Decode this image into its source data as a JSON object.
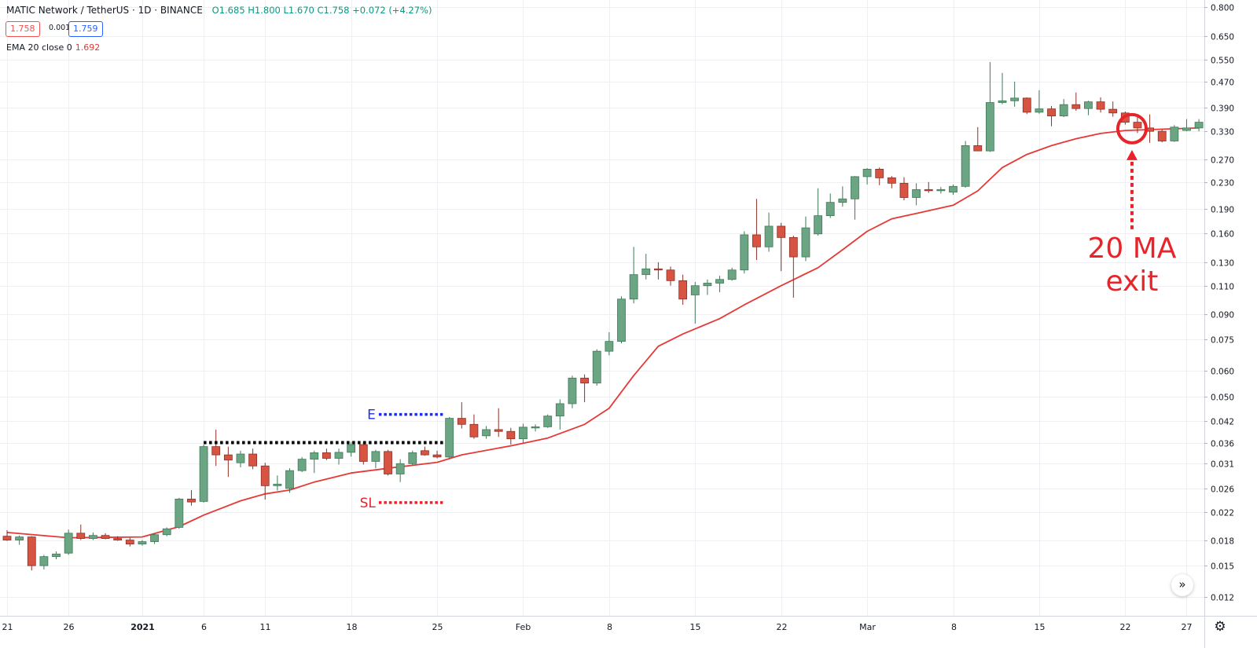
{
  "header": {
    "symbol": "MATIC Network / TetherUS · 1D · BINANCE",
    "ohlc": "O1.685 H1.800 L1.670 C1.758 +0.072 (+4.27%)",
    "sell_price": "1.758",
    "spread": "0.001",
    "buy_price": "1.759",
    "indicator_label": "EMA 20 close 0",
    "indicator_value": "1.692"
  },
  "icons": {
    "scroll": "double-chevron-right-icon",
    "settings": "gear-icon"
  },
  "colors": {
    "up": "#6ba583",
    "down": "#d75442",
    "ema": "#e53935",
    "entry": "#1f2fe0",
    "stop": "#e8242a",
    "range": "#000000",
    "grid": "#eef0f3"
  },
  "chart_data": {
    "type": "candlestick",
    "symbol": "MATIC/USDT",
    "interval": "1D",
    "y_scale": "log",
    "ylim": [
      0.0105,
      0.84
    ],
    "y_ticks": [
      0.012,
      0.015,
      0.018,
      0.022,
      0.026,
      0.031,
      0.036,
      0.042,
      0.05,
      0.06,
      0.075,
      0.09,
      0.11,
      0.13,
      0.16,
      0.19,
      0.23,
      0.27,
      0.33,
      0.39,
      0.47,
      0.55,
      0.65,
      0.8
    ],
    "x_tick_labels": [
      {
        "label": "21",
        "day": 0
      },
      {
        "label": "26",
        "day": 5
      },
      {
        "label": "2021",
        "day": 11
      },
      {
        "label": "6",
        "day": 16
      },
      {
        "label": "11",
        "day": 21
      },
      {
        "label": "18",
        "day": 28
      },
      {
        "label": "25",
        "day": 35
      },
      {
        "label": "Feb",
        "day": 42
      },
      {
        "label": "8",
        "day": 49
      },
      {
        "label": "15",
        "day": 56
      },
      {
        "label": "22",
        "day": 63
      },
      {
        "label": "Mar",
        "day": 70
      },
      {
        "label": "8",
        "day": 77
      },
      {
        "label": "15",
        "day": 84
      },
      {
        "label": "22",
        "day": 91
      },
      {
        "label": "27",
        "day": 96
      }
    ],
    "candles": [
      {
        "day": 0,
        "o": 0.0185,
        "h": 0.0193,
        "l": 0.0179,
        "c": 0.018
      },
      {
        "day": 1,
        "o": 0.018,
        "h": 0.0186,
        "l": 0.0174,
        "c": 0.0184
      },
      {
        "day": 2,
        "o": 0.0184,
        "h": 0.0185,
        "l": 0.0145,
        "c": 0.015
      },
      {
        "day": 3,
        "o": 0.015,
        "h": 0.0162,
        "l": 0.0146,
        "c": 0.016
      },
      {
        "day": 4,
        "o": 0.016,
        "h": 0.0166,
        "l": 0.0157,
        "c": 0.0163
      },
      {
        "day": 5,
        "o": 0.0164,
        "h": 0.0194,
        "l": 0.0162,
        "c": 0.0189
      },
      {
        "day": 6,
        "o": 0.0189,
        "h": 0.0201,
        "l": 0.018,
        "c": 0.0182
      },
      {
        "day": 7,
        "o": 0.0182,
        "h": 0.019,
        "l": 0.018,
        "c": 0.0186
      },
      {
        "day": 8,
        "o": 0.0186,
        "h": 0.0189,
        "l": 0.0181,
        "c": 0.0182
      },
      {
        "day": 9,
        "o": 0.0182,
        "h": 0.0185,
        "l": 0.0179,
        "c": 0.018
      },
      {
        "day": 10,
        "o": 0.018,
        "h": 0.0183,
        "l": 0.0172,
        "c": 0.0175
      },
      {
        "day": 11,
        "o": 0.0175,
        "h": 0.018,
        "l": 0.0173,
        "c": 0.0178
      },
      {
        "day": 12,
        "o": 0.0178,
        "h": 0.0189,
        "l": 0.0175,
        "c": 0.0187
      },
      {
        "day": 13,
        "o": 0.0187,
        "h": 0.0197,
        "l": 0.0185,
        "c": 0.0195
      },
      {
        "day": 14,
        "o": 0.0197,
        "h": 0.0243,
        "l": 0.0195,
        "c": 0.0241
      },
      {
        "day": 15,
        "o": 0.0241,
        "h": 0.0257,
        "l": 0.023,
        "c": 0.0236
      },
      {
        "day": 16,
        "o": 0.0237,
        "h": 0.0355,
        "l": 0.0235,
        "c": 0.035
      },
      {
        "day": 17,
        "o": 0.035,
        "h": 0.0395,
        "l": 0.0305,
        "c": 0.033
      },
      {
        "day": 18,
        "o": 0.033,
        "h": 0.035,
        "l": 0.0282,
        "c": 0.0318
      },
      {
        "day": 19,
        "o": 0.0312,
        "h": 0.034,
        "l": 0.0302,
        "c": 0.0332
      },
      {
        "day": 20,
        "o": 0.0332,
        "h": 0.0345,
        "l": 0.0298,
        "c": 0.0305
      },
      {
        "day": 21,
        "o": 0.0305,
        "h": 0.0312,
        "l": 0.024,
        "c": 0.0265
      },
      {
        "day": 22,
        "o": 0.0265,
        "h": 0.0285,
        "l": 0.0256,
        "c": 0.0268
      },
      {
        "day": 23,
        "o": 0.026,
        "h": 0.03,
        "l": 0.0252,
        "c": 0.0295
      },
      {
        "day": 24,
        "o": 0.0295,
        "h": 0.0325,
        "l": 0.0292,
        "c": 0.032
      },
      {
        "day": 25,
        "o": 0.032,
        "h": 0.034,
        "l": 0.029,
        "c": 0.0335
      },
      {
        "day": 26,
        "o": 0.0335,
        "h": 0.0345,
        "l": 0.0318,
        "c": 0.0322
      },
      {
        "day": 27,
        "o": 0.0322,
        "h": 0.0345,
        "l": 0.0308,
        "c": 0.0336
      },
      {
        "day": 28,
        "o": 0.0336,
        "h": 0.0362,
        "l": 0.0326,
        "c": 0.0355
      },
      {
        "day": 29,
        "o": 0.0355,
        "h": 0.0362,
        "l": 0.0308,
        "c": 0.0315
      },
      {
        "day": 30,
        "o": 0.0315,
        "h": 0.0342,
        "l": 0.03,
        "c": 0.0338
      },
      {
        "day": 31,
        "o": 0.0338,
        "h": 0.0342,
        "l": 0.0285,
        "c": 0.0288
      },
      {
        "day": 32,
        "o": 0.0288,
        "h": 0.032,
        "l": 0.0272,
        "c": 0.031
      },
      {
        "day": 33,
        "o": 0.031,
        "h": 0.034,
        "l": 0.0305,
        "c": 0.0335
      },
      {
        "day": 34,
        "o": 0.034,
        "h": 0.035,
        "l": 0.0328,
        "c": 0.033
      },
      {
        "day": 35,
        "o": 0.033,
        "h": 0.034,
        "l": 0.0322,
        "c": 0.0325
      },
      {
        "day": 36,
        "o": 0.0325,
        "h": 0.0432,
        "l": 0.0322,
        "c": 0.0428
      },
      {
        "day": 37,
        "o": 0.0428,
        "h": 0.048,
        "l": 0.0398,
        "c": 0.041
      },
      {
        "day": 38,
        "o": 0.041,
        "h": 0.044,
        "l": 0.037,
        "c": 0.0375
      },
      {
        "day": 39,
        "o": 0.0378,
        "h": 0.0405,
        "l": 0.037,
        "c": 0.0395
      },
      {
        "day": 40,
        "o": 0.0395,
        "h": 0.046,
        "l": 0.0375,
        "c": 0.039
      },
      {
        "day": 41,
        "o": 0.039,
        "h": 0.04,
        "l": 0.0355,
        "c": 0.037
      },
      {
        "day": 42,
        "o": 0.037,
        "h": 0.0412,
        "l": 0.036,
        "c": 0.0402
      },
      {
        "day": 43,
        "o": 0.04,
        "h": 0.041,
        "l": 0.039,
        "c": 0.0403
      },
      {
        "day": 44,
        "o": 0.0403,
        "h": 0.044,
        "l": 0.04,
        "c": 0.0435
      },
      {
        "day": 45,
        "o": 0.0435,
        "h": 0.049,
        "l": 0.0395,
        "c": 0.0475
      },
      {
        "day": 46,
        "o": 0.0475,
        "h": 0.058,
        "l": 0.046,
        "c": 0.057
      },
      {
        "day": 47,
        "o": 0.057,
        "h": 0.0585,
        "l": 0.048,
        "c": 0.055
      },
      {
        "day": 48,
        "o": 0.055,
        "h": 0.07,
        "l": 0.054,
        "c": 0.069
      },
      {
        "day": 49,
        "o": 0.069,
        "h": 0.079,
        "l": 0.067,
        "c": 0.074
      },
      {
        "day": 50,
        "o": 0.074,
        "h": 0.102,
        "l": 0.073,
        "c": 0.1
      },
      {
        "day": 51,
        "o": 0.1,
        "h": 0.145,
        "l": 0.097,
        "c": 0.119
      },
      {
        "day": 52,
        "o": 0.119,
        "h": 0.138,
        "l": 0.115,
        "c": 0.124
      },
      {
        "day": 53,
        "o": 0.124,
        "h": 0.13,
        "l": 0.115,
        "c": 0.123
      },
      {
        "day": 54,
        "o": 0.123,
        "h": 0.126,
        "l": 0.11,
        "c": 0.114
      },
      {
        "day": 55,
        "o": 0.114,
        "h": 0.119,
        "l": 0.096,
        "c": 0.1
      },
      {
        "day": 56,
        "o": 0.103,
        "h": 0.113,
        "l": 0.084,
        "c": 0.11
      },
      {
        "day": 57,
        "o": 0.11,
        "h": 0.115,
        "l": 0.103,
        "c": 0.112
      },
      {
        "day": 58,
        "o": 0.112,
        "h": 0.118,
        "l": 0.105,
        "c": 0.115
      },
      {
        "day": 59,
        "o": 0.115,
        "h": 0.125,
        "l": 0.114,
        "c": 0.123
      },
      {
        "day": 60,
        "o": 0.123,
        "h": 0.162,
        "l": 0.12,
        "c": 0.158
      },
      {
        "day": 61,
        "o": 0.158,
        "h": 0.204,
        "l": 0.132,
        "c": 0.145
      },
      {
        "day": 62,
        "o": 0.145,
        "h": 0.185,
        "l": 0.14,
        "c": 0.168
      },
      {
        "day": 63,
        "o": 0.168,
        "h": 0.172,
        "l": 0.122,
        "c": 0.155
      },
      {
        "day": 64,
        "o": 0.155,
        "h": 0.157,
        "l": 0.101,
        "c": 0.135
      },
      {
        "day": 65,
        "o": 0.135,
        "h": 0.18,
        "l": 0.131,
        "c": 0.166
      },
      {
        "day": 66,
        "o": 0.159,
        "h": 0.22,
        "l": 0.157,
        "c": 0.181
      },
      {
        "day": 67,
        "o": 0.181,
        "h": 0.212,
        "l": 0.178,
        "c": 0.199
      },
      {
        "day": 68,
        "o": 0.199,
        "h": 0.223,
        "l": 0.193,
        "c": 0.204
      },
      {
        "day": 69,
        "o": 0.204,
        "h": 0.24,
        "l": 0.176,
        "c": 0.239
      },
      {
        "day": 70,
        "o": 0.239,
        "h": 0.254,
        "l": 0.226,
        "c": 0.252
      },
      {
        "day": 71,
        "o": 0.252,
        "h": 0.255,
        "l": 0.225,
        "c": 0.237
      },
      {
        "day": 72,
        "o": 0.237,
        "h": 0.24,
        "l": 0.22,
        "c": 0.228
      },
      {
        "day": 73,
        "o": 0.228,
        "h": 0.238,
        "l": 0.202,
        "c": 0.206
      },
      {
        "day": 74,
        "o": 0.206,
        "h": 0.228,
        "l": 0.195,
        "c": 0.218
      },
      {
        "day": 75,
        "o": 0.218,
        "h": 0.23,
        "l": 0.213,
        "c": 0.217
      },
      {
        "day": 76,
        "o": 0.217,
        "h": 0.222,
        "l": 0.212,
        "c": 0.218
      },
      {
        "day": 77,
        "o": 0.214,
        "h": 0.226,
        "l": 0.21,
        "c": 0.223
      },
      {
        "day": 78,
        "o": 0.223,
        "h": 0.308,
        "l": 0.221,
        "c": 0.298
      },
      {
        "day": 79,
        "o": 0.298,
        "h": 0.34,
        "l": 0.288,
        "c": 0.287
      },
      {
        "day": 80,
        "o": 0.287,
        "h": 0.54,
        "l": 0.285,
        "c": 0.405
      },
      {
        "day": 81,
        "o": 0.405,
        "h": 0.5,
        "l": 0.4,
        "c": 0.41
      },
      {
        "day": 82,
        "o": 0.41,
        "h": 0.47,
        "l": 0.393,
        "c": 0.418
      },
      {
        "day": 83,
        "o": 0.418,
        "h": 0.42,
        "l": 0.373,
        "c": 0.378
      },
      {
        "day": 84,
        "o": 0.378,
        "h": 0.442,
        "l": 0.374,
        "c": 0.387
      },
      {
        "day": 85,
        "o": 0.387,
        "h": 0.395,
        "l": 0.342,
        "c": 0.368
      },
      {
        "day": 86,
        "o": 0.368,
        "h": 0.415,
        "l": 0.365,
        "c": 0.399
      },
      {
        "day": 87,
        "o": 0.399,
        "h": 0.435,
        "l": 0.382,
        "c": 0.388
      },
      {
        "day": 88,
        "o": 0.388,
        "h": 0.41,
        "l": 0.37,
        "c": 0.407
      },
      {
        "day": 89,
        "o": 0.407,
        "h": 0.42,
        "l": 0.377,
        "c": 0.386
      },
      {
        "day": 90,
        "o": 0.386,
        "h": 0.408,
        "l": 0.366,
        "c": 0.376
      },
      {
        "day": 91,
        "o": 0.376,
        "h": 0.38,
        "l": 0.346,
        "c": 0.352
      },
      {
        "day": 92,
        "o": 0.352,
        "h": 0.368,
        "l": 0.326,
        "c": 0.338
      },
      {
        "day": 93,
        "o": 0.338,
        "h": 0.372,
        "l": 0.304,
        "c": 0.33
      },
      {
        "day": 94,
        "o": 0.33,
        "h": 0.334,
        "l": 0.305,
        "c": 0.308
      },
      {
        "day": 95,
        "o": 0.308,
        "h": 0.345,
        "l": 0.306,
        "c": 0.34
      },
      {
        "day": 96,
        "o": 0.332,
        "h": 0.36,
        "l": 0.33,
        "c": 0.338
      },
      {
        "day": 97,
        "o": 0.338,
        "h": 0.36,
        "l": 0.33,
        "c": 0.352
      }
    ],
    "ema20": [
      {
        "day": 0,
        "v": 0.019
      },
      {
        "day": 5,
        "v": 0.0183
      },
      {
        "day": 11,
        "v": 0.0184
      },
      {
        "day": 14,
        "v": 0.0198
      },
      {
        "day": 16,
        "v": 0.0215
      },
      {
        "day": 19,
        "v": 0.0238
      },
      {
        "day": 21,
        "v": 0.025
      },
      {
        "day": 23,
        "v": 0.0257
      },
      {
        "day": 25,
        "v": 0.0272
      },
      {
        "day": 28,
        "v": 0.029
      },
      {
        "day": 31,
        "v": 0.03
      },
      {
        "day": 35,
        "v": 0.0313
      },
      {
        "day": 37,
        "v": 0.033
      },
      {
        "day": 41,
        "v": 0.0352
      },
      {
        "day": 44,
        "v": 0.0372
      },
      {
        "day": 47,
        "v": 0.041
      },
      {
        "day": 49,
        "v": 0.046
      },
      {
        "day": 51,
        "v": 0.058
      },
      {
        "day": 53,
        "v": 0.0715
      },
      {
        "day": 55,
        "v": 0.078
      },
      {
        "day": 58,
        "v": 0.087
      },
      {
        "day": 60,
        "v": 0.096
      },
      {
        "day": 63,
        "v": 0.11
      },
      {
        "day": 66,
        "v": 0.125
      },
      {
        "day": 68,
        "v": 0.142
      },
      {
        "day": 70,
        "v": 0.162
      },
      {
        "day": 72,
        "v": 0.177
      },
      {
        "day": 74,
        "v": 0.184
      },
      {
        "day": 77,
        "v": 0.195
      },
      {
        "day": 79,
        "v": 0.216
      },
      {
        "day": 81,
        "v": 0.255
      },
      {
        "day": 83,
        "v": 0.28
      },
      {
        "day": 85,
        "v": 0.298
      },
      {
        "day": 87,
        "v": 0.313
      },
      {
        "day": 89,
        "v": 0.325
      },
      {
        "day": 91,
        "v": 0.332
      },
      {
        "day": 93,
        "v": 0.334
      },
      {
        "day": 97,
        "v": 0.338
      }
    ],
    "annotations": [
      {
        "type": "range_top",
        "price": 0.036,
        "from_day": 16,
        "to_day": 35,
        "style": "dotted-black"
      },
      {
        "label": "E",
        "type": "entry",
        "price": 0.044,
        "from_day": 30,
        "to_day": 35,
        "color": "blue"
      },
      {
        "label": "SL",
        "type": "stop_loss",
        "price": 0.0235,
        "from_day": 30,
        "to_day": 35,
        "color": "red"
      },
      {
        "label": "20 MA exit",
        "type": "exit",
        "day": 92,
        "price": 0.34,
        "color": "red"
      }
    ]
  }
}
